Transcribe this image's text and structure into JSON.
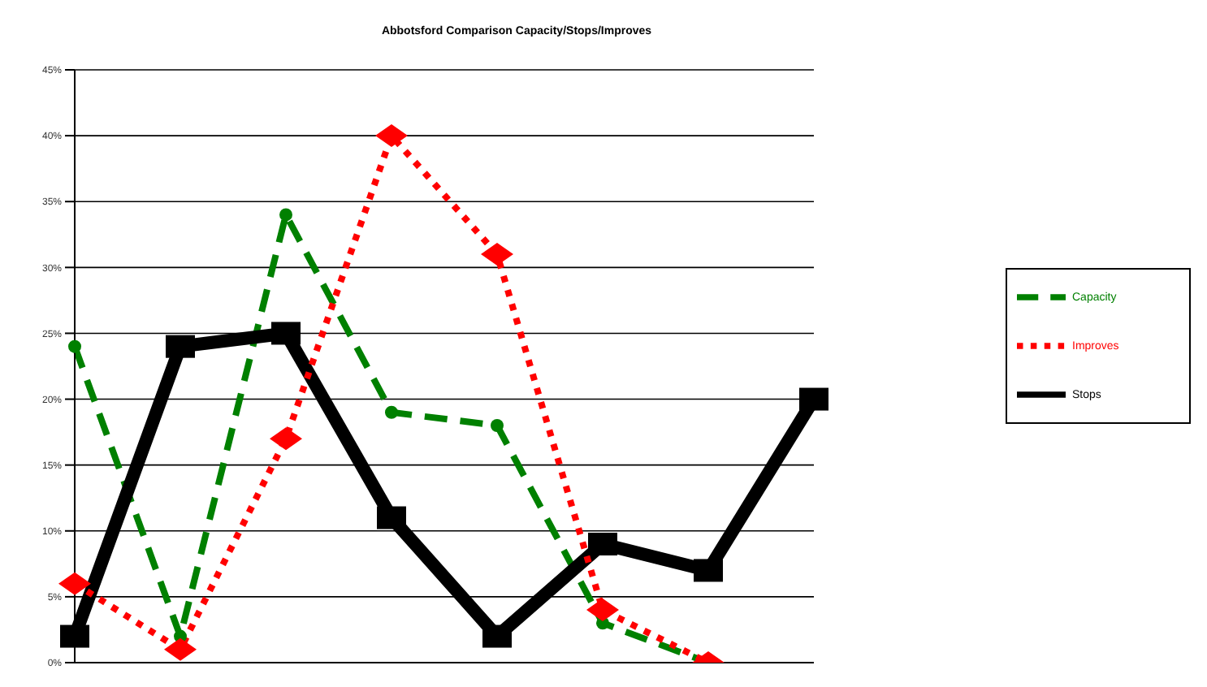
{
  "chart_data": {
    "type": "line",
    "title": "Abbotsford Comparison Capacity/Stops/Improves",
    "categories": [
      null,
      null,
      null,
      null,
      null,
      null,
      null,
      null
    ],
    "series": [
      {
        "name": "Capacity",
        "color": "#008000",
        "values": [
          24,
          2,
          34,
          19,
          18,
          3,
          0,
          null
        ],
        "line_style": "dashed",
        "marker": "circle"
      },
      {
        "name": "Stops",
        "color": "#000000",
        "values": [
          2,
          24,
          25,
          11,
          2,
          9,
          7,
          20
        ],
        "line_style": "solid",
        "marker": "square"
      },
      {
        "name": "Improves",
        "color": "#ff0000",
        "values": [
          6,
          1,
          17,
          40,
          31,
          4,
          0,
          null
        ],
        "line_style": "dotted",
        "marker": "diamond"
      }
    ],
    "ylim": [
      0,
      45
    ],
    "yticks": [
      {
        "value": 0,
        "label": "0%"
      },
      {
        "value": 5,
        "label": "5%"
      },
      {
        "value": 10,
        "label": "10%"
      },
      {
        "value": 15,
        "label": "15%"
      },
      {
        "value": 20,
        "label": "20%"
      },
      {
        "value": 25,
        "label": "25%"
      },
      {
        "value": 30,
        "label": "30%"
      },
      {
        "value": 35,
        "label": "35%"
      },
      {
        "value": 40,
        "label": "40%"
      },
      {
        "value": 45,
        "label": "45%"
      }
    ],
    "grid": "y",
    "legend": "right",
    "tick_labels": "y"
  }
}
